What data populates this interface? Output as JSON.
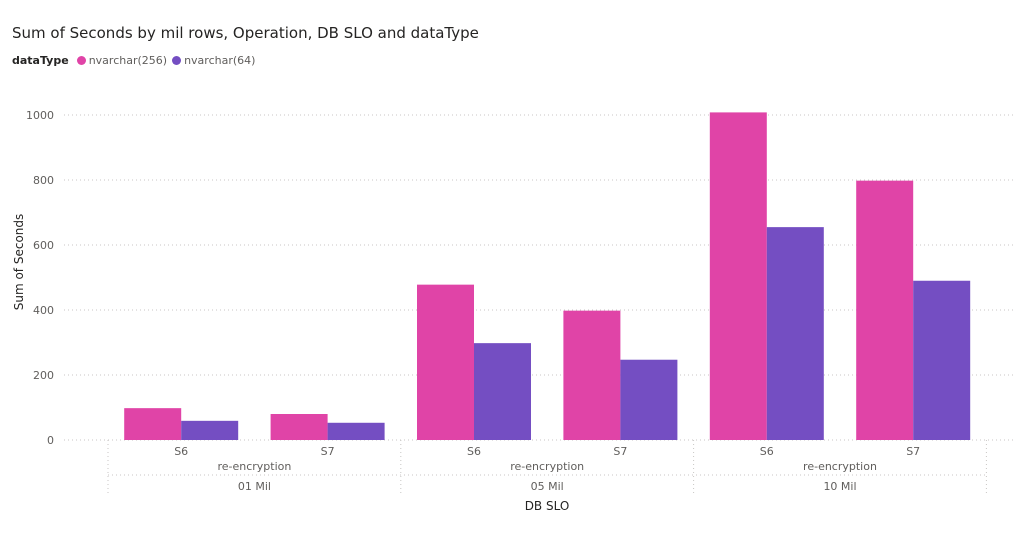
{
  "chart_data": {
    "type": "bar",
    "title": "Sum of Seconds by mil rows, Operation, DB SLO and dataType",
    "xlabel": "DB SLO",
    "ylabel": "Sum of Seconds",
    "ylim": [
      0,
      1000
    ],
    "yticks": [
      0,
      200,
      400,
      600,
      800,
      1000
    ],
    "grid": true,
    "legend": {
      "title": "dataType",
      "placement": "top-left"
    },
    "categories": [
      "S6",
      "S7",
      "S6",
      "S7",
      "S6",
      "S7"
    ],
    "operation_labels": [
      "re-encryption",
      "re-encryption",
      "re-encryption"
    ],
    "mil_rows_labels": [
      "01 Mil",
      "05 Mil",
      "10 Mil"
    ],
    "series": [
      {
        "name": "nvarchar(256)",
        "color": "#e044a7",
        "values": [
          98,
          80,
          478,
          398,
          1008,
          798
        ]
      },
      {
        "name": "nvarchar(64)",
        "color": "#744ec2",
        "values": [
          59,
          53,
          298,
          247,
          655,
          490
        ]
      }
    ]
  }
}
